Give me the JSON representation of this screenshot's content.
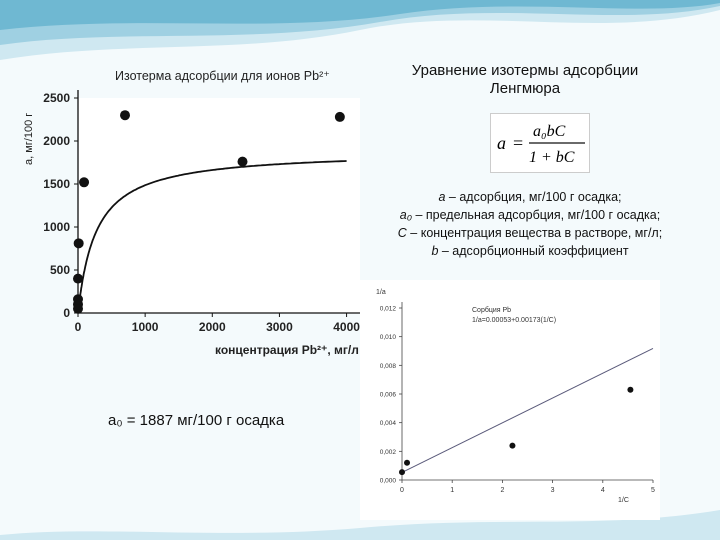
{
  "slide": {
    "equation_title_line1": "Уравнение изотермы адсорбции",
    "equation_title_line2": "Ленгмюра",
    "equation": {
      "lhs": "a",
      "eq": "=",
      "numerator": "a₀bC",
      "denominator": "1 + bC"
    },
    "legend": [
      {
        "sym": "a",
        "text": " – адсорбция, мг/100 г осадка;"
      },
      {
        "sym": "a₀",
        "text": " – предельная адсорбция, мг/100 г осадка;"
      },
      {
        "sym": "C",
        "text": " – концентрация вещества в растворе, мг/л;"
      },
      {
        "sym": "b",
        "text": " – адсорбционный коэффициент"
      }
    ],
    "a0_result": "a₀ = 1887 мг/100 г осадка",
    "colors": {
      "wave_light": "#cfe8f1",
      "wave_mid": "#9fd0e2",
      "wave_dark": "#5fb0cc",
      "curve": "#111111",
      "fit_line": "#5a5a7a"
    }
  },
  "chart_data": [
    {
      "type": "scatter",
      "title": "Изотерма адсорбции для ионов Pb²⁺",
      "xlabel": "концентрация Pb²⁺, мг/л",
      "ylabel": "а, мг/100 г",
      "xlim": [
        0,
        4200
      ],
      "ylim": [
        0,
        2500
      ],
      "x_ticks": [
        "0",
        "1000",
        "2000",
        "3000",
        "4000"
      ],
      "y_ticks": [
        "0",
        "500",
        "1000",
        "1500",
        "2000",
        "2500"
      ],
      "series": [
        {
          "points": [
            [
              0,
              50
            ],
            [
              0,
              100
            ],
            [
              0,
              160
            ],
            [
              0,
              400
            ],
            [
              10,
              810
            ],
            [
              90,
              1520
            ],
            [
              700,
              2300
            ],
            [
              2450,
              1760
            ],
            [
              3900,
              2280
            ]
          ]
        }
      ],
      "fit_curve": {
        "a0": 1887,
        "b": 0.0037
      }
    },
    {
      "type": "scatter",
      "title": "Сорбция Pb",
      "annotation": "1/a=0.00053+0.00173(1/C)",
      "xlabel": "1/C",
      "ylabel": "1/a",
      "xlim": [
        0,
        5
      ],
      "ylim": [
        0,
        0.012
      ],
      "x_ticks": [
        "0",
        "1",
        "2",
        "3",
        "4",
        "5"
      ],
      "y_ticks": [
        "0,000",
        "0,002",
        "0,004",
        "0,006",
        "0,008",
        "0,010",
        "0,012"
      ],
      "series": [
        {
          "points": [
            [
              0,
              0.00055
            ],
            [
              0.1,
              0.0012
            ],
            [
              2.2,
              0.0024
            ],
            [
              4.55,
              0.0063
            ]
          ]
        }
      ],
      "fit_line": {
        "intercept": 0.00053,
        "slope": 0.00173,
        "x_range": [
          0,
          5
        ]
      }
    }
  ]
}
